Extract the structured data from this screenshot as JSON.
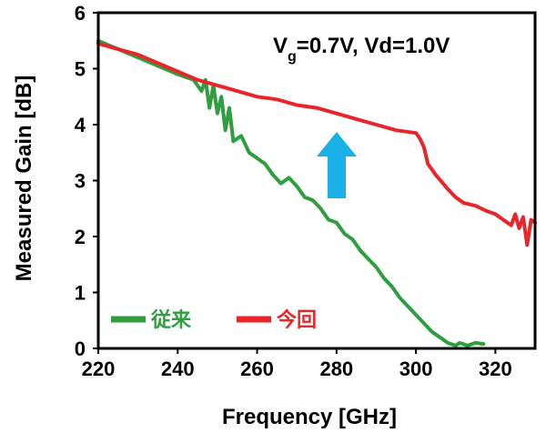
{
  "chart_data": {
    "type": "line",
    "xlabel": "Frequency [GHz]",
    "ylabel": "Measured Gain [dB]",
    "xlim": [
      220,
      330
    ],
    "ylim": [
      0,
      6
    ],
    "xticks": [
      220,
      240,
      260,
      280,
      300,
      320
    ],
    "yticks": [
      0,
      1,
      2,
      3,
      4,
      5,
      6
    ],
    "grid": false,
    "legend_position": "bottom-left",
    "annotation": {
      "prefix": "V",
      "subscript": "g",
      "suffix": "=0.7V, Vd=1.0V"
    },
    "arrow_color": "#1ab0e8",
    "series": [
      {
        "name": "従来",
        "color": "#2e9e3e",
        "x": [
          220,
          225,
          230,
          235,
          240,
          244,
          246,
          247,
          248,
          249,
          250,
          251,
          252,
          253,
          254,
          256,
          258,
          260,
          262,
          264,
          266,
          268,
          270,
          272,
          274,
          276,
          278,
          280,
          282,
          284,
          286,
          288,
          290,
          292,
          294,
          296,
          298,
          300,
          302,
          304,
          306,
          308,
          310,
          311,
          313,
          315,
          317
        ],
        "y": [
          5.5,
          5.35,
          5.2,
          5.05,
          4.9,
          4.8,
          4.6,
          4.8,
          4.3,
          4.7,
          4.2,
          4.5,
          3.9,
          4.3,
          3.7,
          3.8,
          3.5,
          3.4,
          3.3,
          3.1,
          2.95,
          3.05,
          2.9,
          2.7,
          2.65,
          2.5,
          2.3,
          2.25,
          2.05,
          1.95,
          1.75,
          1.6,
          1.45,
          1.25,
          1.1,
          0.9,
          0.75,
          0.6,
          0.45,
          0.3,
          0.2,
          0.1,
          0.05,
          0.1,
          0.05,
          0.1,
          0.08
        ]
      },
      {
        "name": "今回",
        "color": "#e8262a",
        "x": [
          220,
          225,
          230,
          235,
          240,
          245,
          250,
          255,
          260,
          265,
          270,
          275,
          280,
          285,
          290,
          295,
          300,
          301,
          302,
          303,
          305,
          308,
          310,
          312,
          315,
          318,
          320,
          322,
          324,
          325,
          326,
          327,
          328,
          329,
          330
        ],
        "y": [
          5.45,
          5.35,
          5.25,
          5.1,
          4.95,
          4.8,
          4.7,
          4.6,
          4.5,
          4.45,
          4.35,
          4.3,
          4.2,
          4.1,
          4.0,
          3.9,
          3.85,
          3.75,
          3.6,
          3.3,
          3.1,
          2.85,
          2.7,
          2.6,
          2.55,
          2.45,
          2.4,
          2.3,
          2.2,
          2.4,
          2.15,
          2.35,
          1.85,
          2.3,
          2.25
        ]
      }
    ]
  }
}
